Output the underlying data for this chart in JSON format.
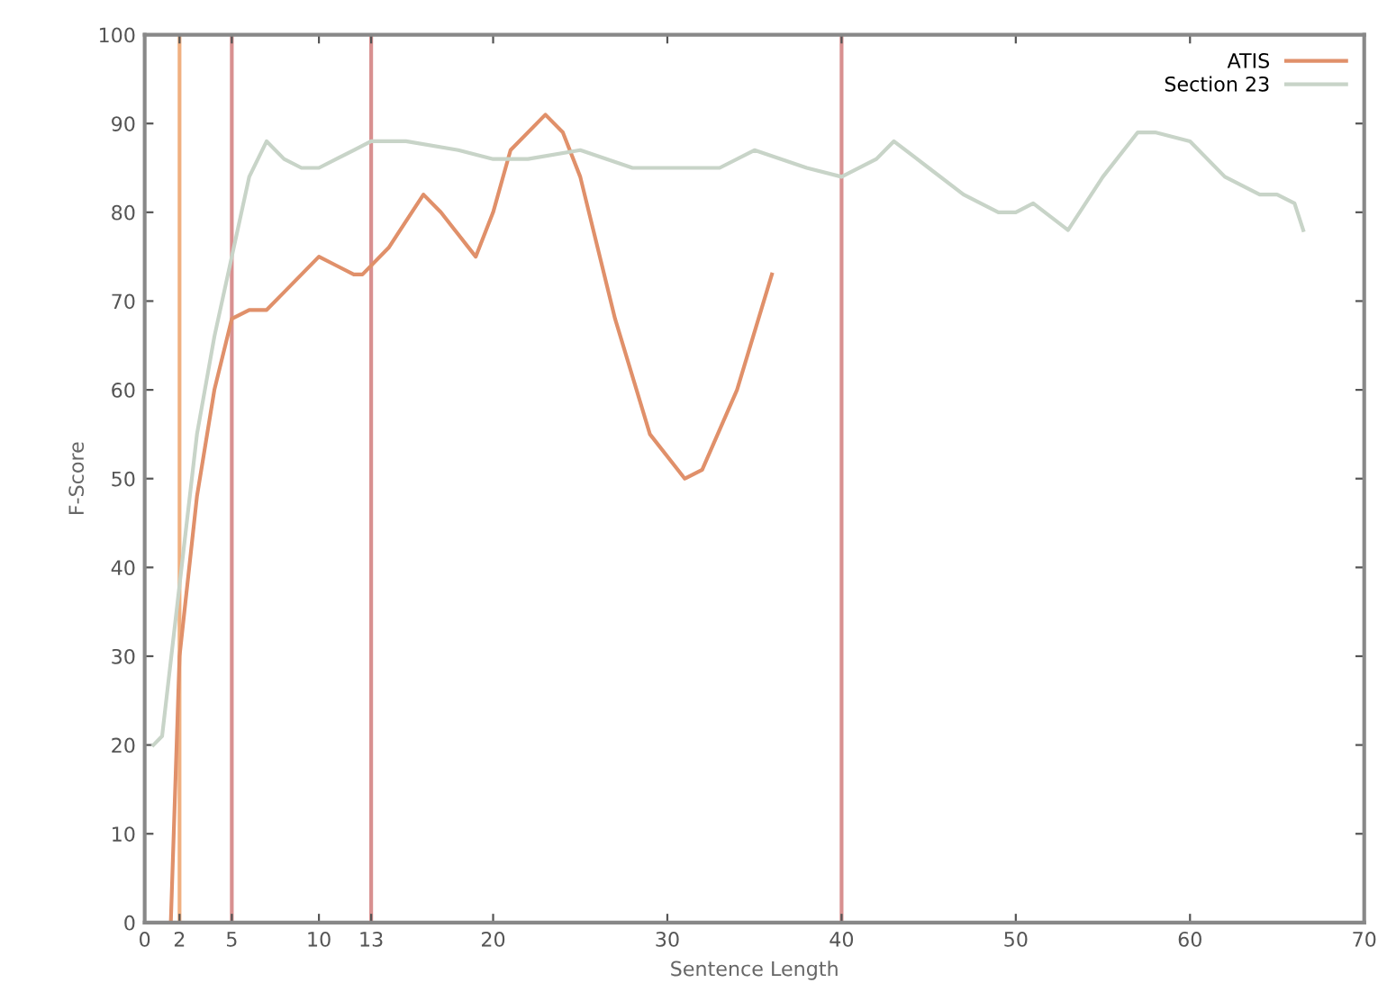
{
  "chart_data": {
    "type": "line",
    "xlabel": "Sentence Length",
    "ylabel": "F-Score",
    "xlim": [
      0,
      70
    ],
    "ylim": [
      0,
      100
    ],
    "xticks": [
      0,
      2,
      5,
      10,
      13,
      20,
      30,
      40,
      50,
      60,
      70
    ],
    "yticks": [
      0,
      10,
      20,
      30,
      40,
      50,
      60,
      70,
      80,
      90,
      100
    ],
    "grid": false,
    "legend": "top right",
    "marker": "none",
    "line_style": "solid",
    "ref_lines": [
      {
        "axis": "x",
        "value": 2,
        "color": "#f0b080"
      },
      {
        "axis": "x",
        "value": 5,
        "color": "#d89090"
      },
      {
        "axis": "x",
        "value": 13,
        "color": "#d89090"
      },
      {
        "axis": "x",
        "value": 40,
        "color": "#d89090"
      }
    ],
    "series": [
      {
        "name": "ATIS",
        "color": "#e0906a",
        "x": [
          1.5,
          2,
          3,
          4,
          5,
          6,
          7,
          8,
          9,
          10,
          11,
          12,
          12.5,
          14,
          16,
          17,
          19,
          20,
          21,
          23,
          24,
          25,
          27,
          29,
          31,
          32,
          34,
          36
        ],
        "values": [
          0,
          30,
          48,
          60,
          68,
          69,
          69,
          71,
          73,
          75,
          74,
          73,
          73,
          76,
          82,
          80,
          75,
          80,
          87,
          91,
          89,
          84,
          68,
          55,
          50,
          51,
          60,
          73
        ]
      },
      {
        "name": "Section 23",
        "color": "#c8d4c8",
        "x": [
          0.5,
          1,
          2,
          3,
          4,
          5,
          6,
          7,
          8,
          9,
          10,
          11,
          12,
          13,
          15,
          18,
          20,
          22,
          25,
          28,
          30,
          33,
          35,
          38,
          40,
          42,
          43,
          45,
          47,
          49,
          50,
          51,
          53,
          55,
          57,
          58,
          60,
          62,
          64,
          65,
          66,
          66.5
        ],
        "values": [
          20,
          21,
          38,
          55,
          66,
          75,
          84,
          88,
          86,
          85,
          85,
          86,
          87,
          88,
          88,
          87,
          86,
          86,
          87,
          85,
          85,
          85,
          87,
          85,
          84,
          86,
          88,
          85,
          82,
          80,
          80,
          81,
          78,
          84,
          89,
          89,
          88,
          84,
          82,
          82,
          81,
          78
        ]
      }
    ]
  }
}
